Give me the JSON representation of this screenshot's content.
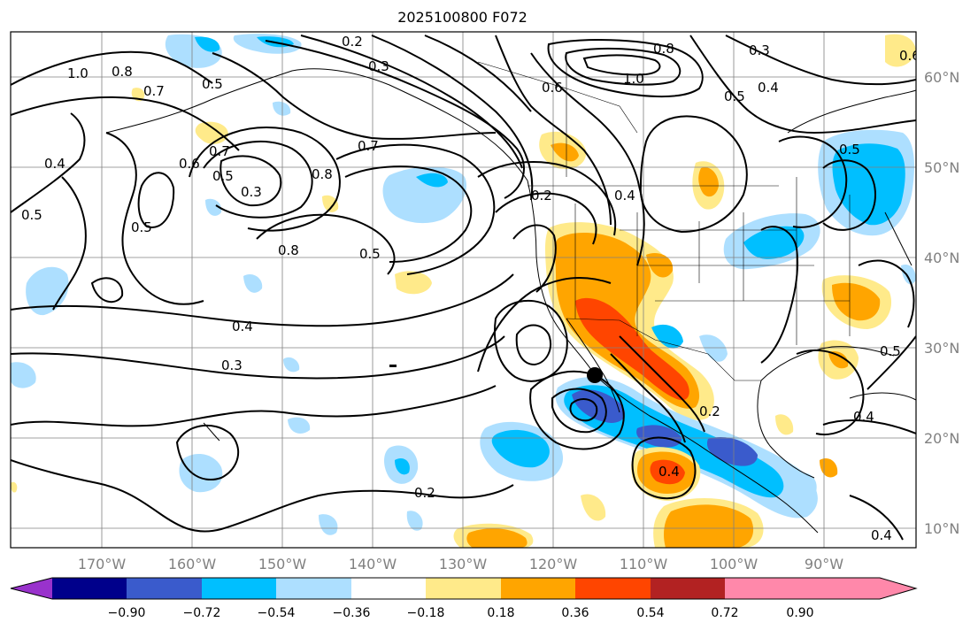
{
  "title": "2025100800 F072",
  "axes": {
    "lon_labels": [
      "170°W",
      "160°W",
      "150°W",
      "140°W",
      "130°W",
      "120°W",
      "110°W",
      "100°W",
      "90°W"
    ],
    "lat_labels": [
      "60°N",
      "50°N",
      "40°N",
      "30°N",
      "20°N",
      "10°N"
    ],
    "label_color": "#808080"
  },
  "colorbar": {
    "tick_labels": [
      "−0.90",
      "−0.72",
      "−0.54",
      "−0.36",
      "−0.18",
      "0.18",
      "0.36",
      "0.54",
      "0.72",
      "0.90"
    ],
    "colors": [
      "#9932CC",
      "#00008B",
      "#3A5BCC",
      "#00BFFF",
      "#ADDFFF",
      "#FFFFFF",
      "#FFEA8A",
      "#FFA500",
      "#FF4500",
      "#B22222",
      "#FF88AA"
    ]
  },
  "contour_labels": [
    {
      "text": "0.2"
    },
    {
      "text": "0.3"
    },
    {
      "text": "0.3"
    },
    {
      "text": "0.4"
    },
    {
      "text": "0.5"
    },
    {
      "text": "0.8"
    },
    {
      "text": "1.0"
    },
    {
      "text": "0.6"
    },
    {
      "text": "0.8"
    },
    {
      "text": "1.0"
    },
    {
      "text": "0.7"
    },
    {
      "text": "0.5"
    },
    {
      "text": "0.7"
    },
    {
      "text": "0.6"
    },
    {
      "text": "0.5"
    },
    {
      "text": "0.3"
    },
    {
      "text": "0.4"
    },
    {
      "text": "0.5"
    },
    {
      "text": "0.5"
    },
    {
      "text": "0.8"
    },
    {
      "text": "0.7"
    },
    {
      "text": "0.8"
    },
    {
      "text": "0.5"
    },
    {
      "text": "0.4"
    },
    {
      "text": "0.3"
    },
    {
      "text": "0.2"
    },
    {
      "text": "0.2"
    },
    {
      "text": "0.4"
    },
    {
      "text": "0.4"
    },
    {
      "text": "0.5"
    },
    {
      "text": "0.6"
    },
    {
      "text": "0.5"
    },
    {
      "text": "0.4"
    },
    {
      "text": "0.2"
    },
    {
      "text": "0.4"
    }
  ],
  "shading_colors": {
    "light_blue": "#ADDFFF",
    "blue": "#00BFFF",
    "dark_blue": "#3A5BCC",
    "yellow": "#FFEA8A",
    "orange": "#FFA500",
    "red_orange": "#FF4500"
  }
}
